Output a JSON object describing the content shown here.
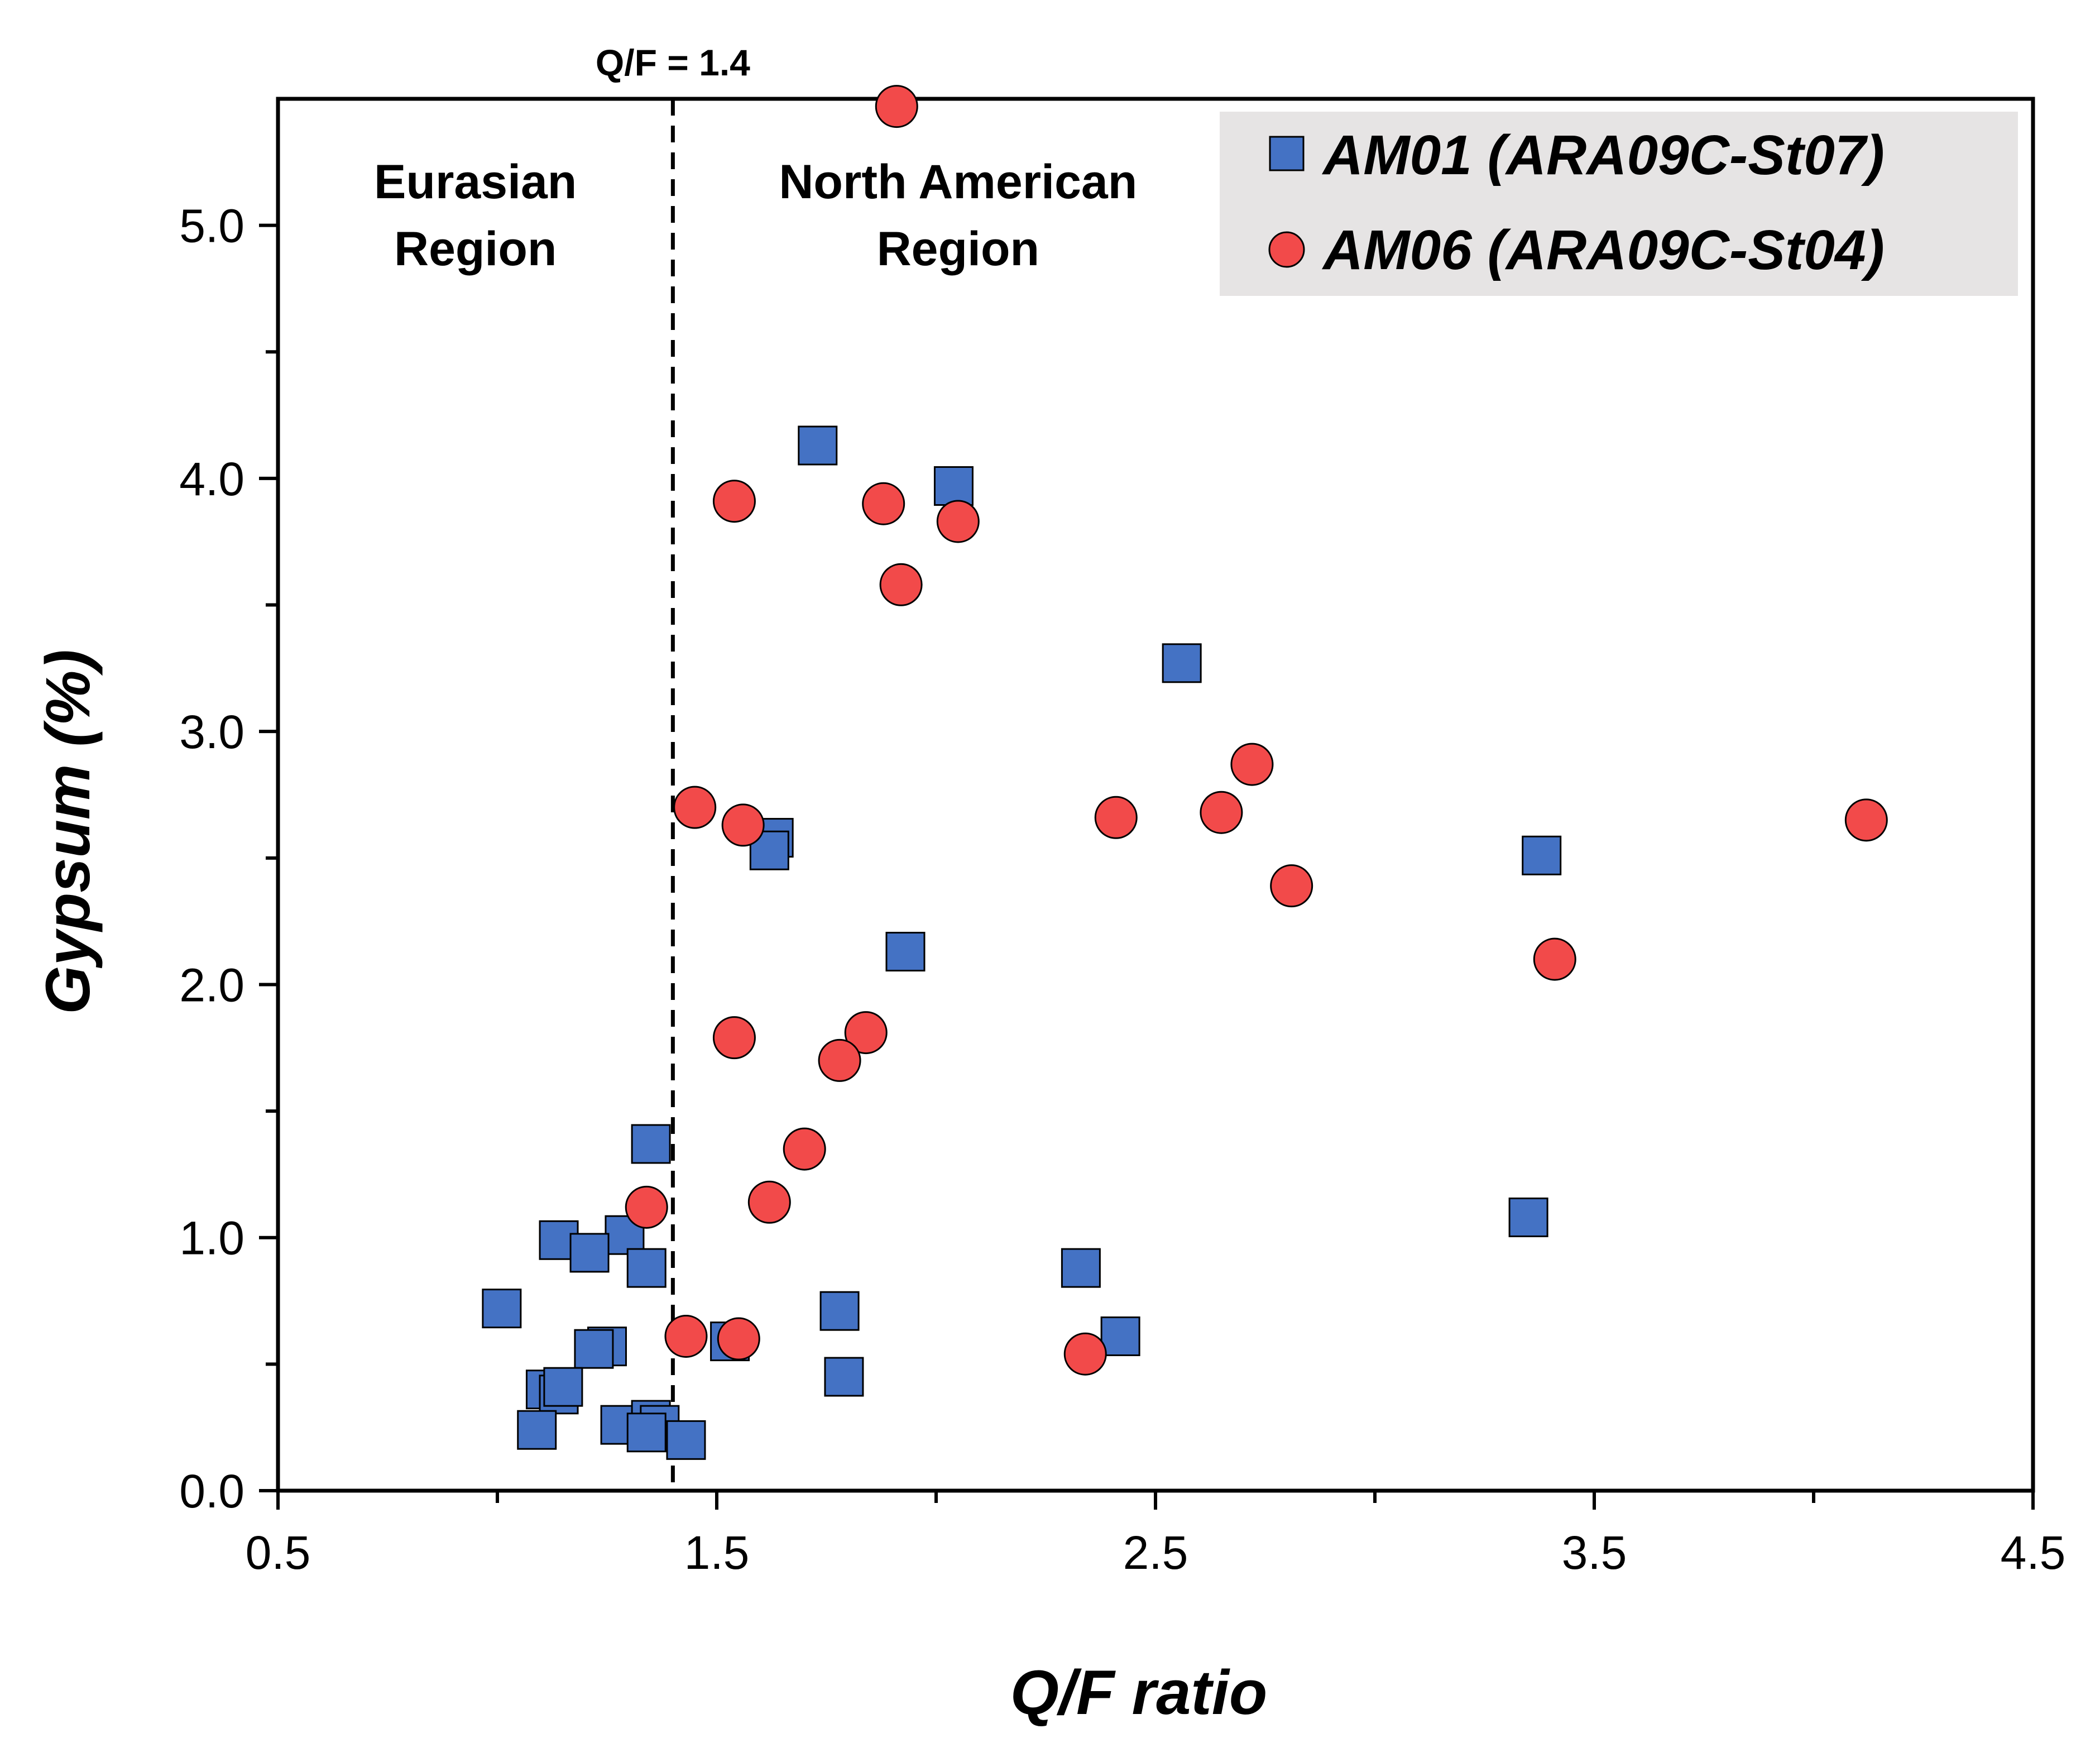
{
  "chart_data": {
    "type": "scatter",
    "title": "",
    "xlabel": "Q/F ratio",
    "ylabel": "Gypsum (%)",
    "xlim": [
      0.5,
      4.5
    ],
    "ylim": [
      0.0,
      5.5
    ],
    "x_ticks": [
      "0.5",
      "1.5",
      "2.5",
      "3.5",
      "4.5"
    ],
    "x_tick_values": [
      0.5,
      1.5,
      2.5,
      3.5,
      4.5
    ],
    "x_minor_step": 0.5,
    "y_ticks": [
      "0.0",
      "1.0",
      "2.0",
      "3.0",
      "4.0",
      "5.0"
    ],
    "y_tick_values": [
      0.0,
      1.0,
      2.0,
      3.0,
      4.0,
      5.0
    ],
    "y_minor_step": 0.5,
    "grid": false,
    "legend_position": "top-right",
    "reference_line": {
      "x": 1.4,
      "label": "Q/F = 1.4",
      "style": "dashed"
    },
    "region_labels": [
      {
        "line1": "Eurasian",
        "line2": "Region",
        "x": 0.95
      },
      {
        "line1": "North American",
        "line2": "Region",
        "x": 2.05
      }
    ],
    "series": [
      {
        "name": "AM01 (ARA09C-St07)",
        "marker": "square",
        "color": "#4472C4",
        "points": [
          [
            1.73,
            4.13
          ],
          [
            2.04,
            3.97
          ],
          [
            2.56,
            3.27
          ],
          [
            1.63,
            2.58
          ],
          [
            1.62,
            2.53
          ],
          [
            3.38,
            2.51
          ],
          [
            1.93,
            2.13
          ],
          [
            1.35,
            1.37
          ],
          [
            3.35,
            1.08
          ],
          [
            1.14,
            0.99
          ],
          [
            1.29,
            1.01
          ],
          [
            1.21,
            0.94
          ],
          [
            1.34,
            0.88
          ],
          [
            2.33,
            0.88
          ],
          [
            1.01,
            0.72
          ],
          [
            1.78,
            0.71
          ],
          [
            2.42,
            0.61
          ],
          [
            1.25,
            0.57
          ],
          [
            1.22,
            0.56
          ],
          [
            1.53,
            0.59
          ],
          [
            1.79,
            0.45
          ],
          [
            1.11,
            0.4
          ],
          [
            1.14,
            0.38
          ],
          [
            1.15,
            0.41
          ],
          [
            1.09,
            0.24
          ],
          [
            1.28,
            0.26
          ],
          [
            1.35,
            0.28
          ],
          [
            1.37,
            0.26
          ],
          [
            1.34,
            0.23
          ],
          [
            1.43,
            0.2
          ]
        ]
      },
      {
        "name": "AM06 (ARA09C-St04)",
        "marker": "circle",
        "color": "#F24A4A",
        "points": [
          [
            1.91,
            5.47
          ],
          [
            1.54,
            3.91
          ],
          [
            1.88,
            3.9
          ],
          [
            2.05,
            3.83
          ],
          [
            1.92,
            3.58
          ],
          [
            2.72,
            2.87
          ],
          [
            1.45,
            2.7
          ],
          [
            2.65,
            2.68
          ],
          [
            2.41,
            2.66
          ],
          [
            4.12,
            2.65
          ],
          [
            1.56,
            2.63
          ],
          [
            2.81,
            2.39
          ],
          [
            3.41,
            2.1
          ],
          [
            1.54,
            1.79
          ],
          [
            1.84,
            1.81
          ],
          [
            1.78,
            1.7
          ],
          [
            1.7,
            1.35
          ],
          [
            1.34,
            1.12
          ],
          [
            1.62,
            1.14
          ],
          [
            1.43,
            0.61
          ],
          [
            1.55,
            0.6
          ],
          [
            2.34,
            0.54
          ]
        ]
      }
    ]
  }
}
